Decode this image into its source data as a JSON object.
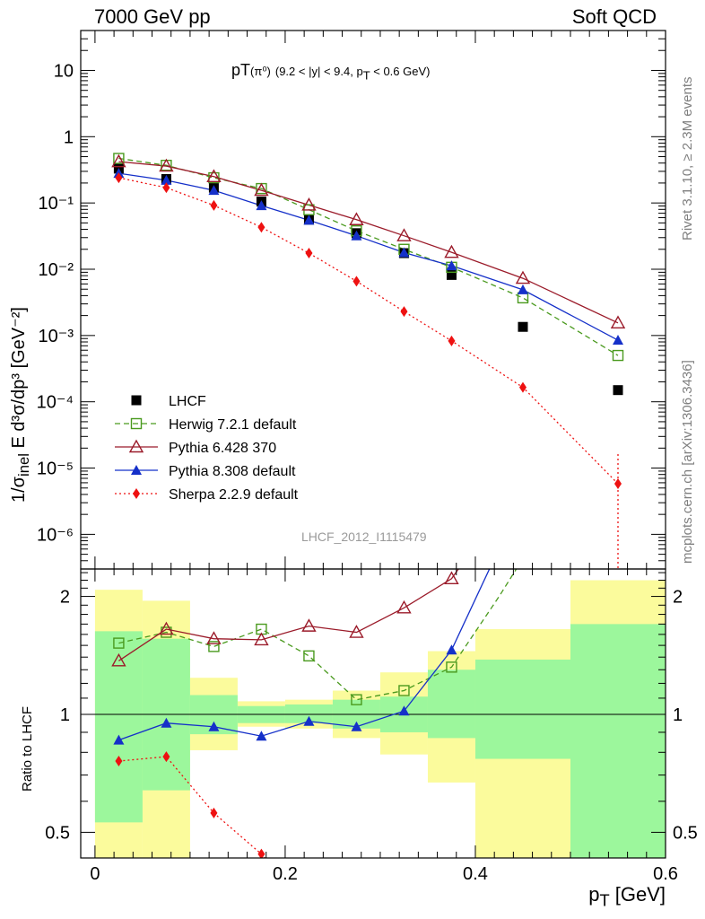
{
  "header": {
    "left": "7000 GeV pp",
    "right": "Soft QCD"
  },
  "plot_title": {
    "main": "pT",
    "particle": "(π⁰)",
    "cuts_a": "(9.2 < |y| < 9.4, p",
    "cuts_sub": "T",
    "cuts_b": " < 0.6 GeV)"
  },
  "side": {
    "rivet": "Rivet 3.1.10, ≥ 2.3M events",
    "mcplots": "mcplots.cern.ch [arXiv:1306.3436]"
  },
  "watermark": "LHCF_2012_I1115479",
  "axis_labels": {
    "top_y": "1/σ",
    "top_y_sub": "inel",
    "top_y_rest": " E d³σ/dp³ [GeV⁻²]",
    "bottom_y": "Ratio to LHCF",
    "x_main": "p",
    "x_sub": "T",
    "x_rest": " [GeV]"
  },
  "colors": {
    "data": "#000000",
    "herwig": "#4a9a1e",
    "pythia6": "#9b1b2a",
    "pythia8": "#1530c9",
    "sherpa": "#ee1111",
    "band_inner": "#9cf79c",
    "band_outer": "#fbfb9c"
  },
  "chart_data": [
    {
      "type": "scatter",
      "panel": "main",
      "yscale": "log",
      "xlim": [
        -0.015,
        0.6
      ],
      "ylim": [
        3e-07,
        40
      ],
      "xticks": [],
      "yticks": [
        {
          "v": 10,
          "label": "10"
        },
        {
          "v": 1,
          "label": "1"
        },
        {
          "v": 0.1,
          "label": "10⁻¹"
        },
        {
          "v": 0.01,
          "label": "10⁻²"
        },
        {
          "v": 0.001,
          "label": "10⁻³"
        },
        {
          "v": 0.0001,
          "label": "10⁻⁴"
        },
        {
          "v": 1e-05,
          "label": "10⁻⁵"
        },
        {
          "v": 1e-06,
          "label": "10⁻⁶"
        }
      ],
      "legend_position": "bottom-left",
      "series": [
        {
          "name": "LHCF",
          "style": "data",
          "x": [
            0.025,
            0.075,
            0.125,
            0.175,
            0.225,
            0.275,
            0.325,
            0.375,
            0.45,
            0.55
          ],
          "y": [
            0.33,
            0.23,
            0.17,
            0.105,
            0.056,
            0.035,
            0.0175,
            0.0082,
            0.00135,
            0.00015
          ]
        },
        {
          "name": "Herwig 7.2.1 default",
          "style": "herwig",
          "x": [
            0.025,
            0.075,
            0.125,
            0.175,
            0.225,
            0.275,
            0.325,
            0.375,
            0.45,
            0.55
          ],
          "y": [
            0.47,
            0.37,
            0.24,
            0.165,
            0.079,
            0.038,
            0.02,
            0.0107,
            0.0037,
            0.0005
          ]
        },
        {
          "name": "Pythia 6.428 370",
          "style": "pythia6",
          "x": [
            0.025,
            0.075,
            0.125,
            0.175,
            0.225,
            0.275,
            0.325,
            0.375,
            0.45,
            0.55
          ],
          "y": [
            0.42,
            0.36,
            0.25,
            0.155,
            0.093,
            0.056,
            0.032,
            0.018,
            0.0073,
            0.00155
          ]
        },
        {
          "name": "Pythia 8.308 default",
          "style": "pythia8",
          "x": [
            0.025,
            0.075,
            0.125,
            0.175,
            0.225,
            0.275,
            0.325,
            0.375,
            0.45,
            0.55
          ],
          "y": [
            0.28,
            0.22,
            0.155,
            0.091,
            0.055,
            0.032,
            0.0178,
            0.0113,
            0.0049,
            0.00085
          ]
        },
        {
          "name": "Sherpa 2.2.9 default",
          "style": "sherpa",
          "x": [
            0.025,
            0.075,
            0.125,
            0.175,
            0.225,
            0.275,
            0.325,
            0.375,
            0.45,
            0.55
          ],
          "y": [
            0.24,
            0.17,
            0.092,
            0.043,
            0.0175,
            0.0066,
            0.0023,
            0.00083,
            0.000165,
            5.8e-06
          ]
        }
      ]
    },
    {
      "type": "line",
      "panel": "ratio",
      "yscale": "log",
      "xlabel": "p_T [GeV]",
      "ylabel": "Ratio to LHCF",
      "xlim": [
        -0.015,
        0.6
      ],
      "ylim": [
        0.43,
        2.35
      ],
      "xticks": [
        {
          "v": 0,
          "label": "0"
        },
        {
          "v": 0.2,
          "label": "0.2"
        },
        {
          "v": 0.4,
          "label": "0.4"
        },
        {
          "v": 0.6,
          "label": "0.6"
        }
      ],
      "yticks": [
        {
          "v": 0.5,
          "label": "0.5"
        },
        {
          "v": 1,
          "label": "1"
        },
        {
          "v": 2,
          "label": "2"
        }
      ],
      "bins": [
        {
          "x0": 0.0,
          "x1": 0.05,
          "inner": [
            0.53,
            1.63
          ],
          "outer": [
            0.0,
            2.08
          ]
        },
        {
          "x0": 0.05,
          "x1": 0.1,
          "inner": [
            0.64,
            1.56
          ],
          "outer": [
            0.0,
            1.95
          ]
        },
        {
          "x0": 0.1,
          "x1": 0.15,
          "inner": [
            0.89,
            1.12
          ],
          "outer": [
            0.81,
            1.24
          ]
        },
        {
          "x0": 0.15,
          "x1": 0.2,
          "inner": [
            0.95,
            1.05
          ],
          "outer": [
            0.93,
            1.08
          ]
        },
        {
          "x0": 0.2,
          "x1": 0.25,
          "inner": [
            0.95,
            1.06
          ],
          "outer": [
            0.92,
            1.09
          ]
        },
        {
          "x0": 0.25,
          "x1": 0.3,
          "inner": [
            0.92,
            1.09
          ],
          "outer": [
            0.87,
            1.15
          ]
        },
        {
          "x0": 0.3,
          "x1": 0.35,
          "inner": [
            0.9,
            1.11
          ],
          "outer": [
            0.79,
            1.28
          ]
        },
        {
          "x0": 0.35,
          "x1": 0.4,
          "inner": [
            0.87,
            1.3
          ],
          "outer": [
            0.67,
            1.45
          ]
        },
        {
          "x0": 0.4,
          "x1": 0.5,
          "inner": [
            0.77,
            1.38
          ],
          "outer": [
            0.43,
            1.65
          ]
        },
        {
          "x0": 0.5,
          "x1": 0.6,
          "inner": [
            0.0,
            1.7
          ],
          "outer": [
            0.0,
            2.2
          ]
        }
      ],
      "series": [
        {
          "name": "Herwig 7.2.1 default",
          "style": "herwig",
          "x": [
            0.025,
            0.075,
            0.125,
            0.175,
            0.225,
            0.275,
            0.325,
            0.375,
            0.425,
            0.45
          ],
          "y": [
            1.52,
            1.62,
            1.49,
            1.65,
            1.41,
            1.09,
            1.15,
            1.32,
            2.0,
            2.5
          ]
        },
        {
          "name": "Pythia 6.428 370",
          "style": "pythia6",
          "x": [
            0.025,
            0.075,
            0.125,
            0.175,
            0.225,
            0.275,
            0.325,
            0.375,
            0.39
          ],
          "y": [
            1.37,
            1.65,
            1.56,
            1.55,
            1.68,
            1.62,
            1.87,
            2.22,
            2.5
          ]
        },
        {
          "name": "Pythia 8.308 default",
          "style": "pythia8",
          "x": [
            0.025,
            0.075,
            0.125,
            0.175,
            0.225,
            0.275,
            0.325,
            0.375,
            0.42
          ],
          "y": [
            0.86,
            0.95,
            0.93,
            0.88,
            0.96,
            0.93,
            1.02,
            1.46,
            2.5
          ]
        },
        {
          "name": "Sherpa 2.2.9 default",
          "style": "sherpa",
          "x": [
            0.025,
            0.075,
            0.125,
            0.175,
            0.19
          ],
          "y": [
            0.76,
            0.78,
            0.56,
            0.44,
            0.4
          ]
        }
      ]
    }
  ]
}
